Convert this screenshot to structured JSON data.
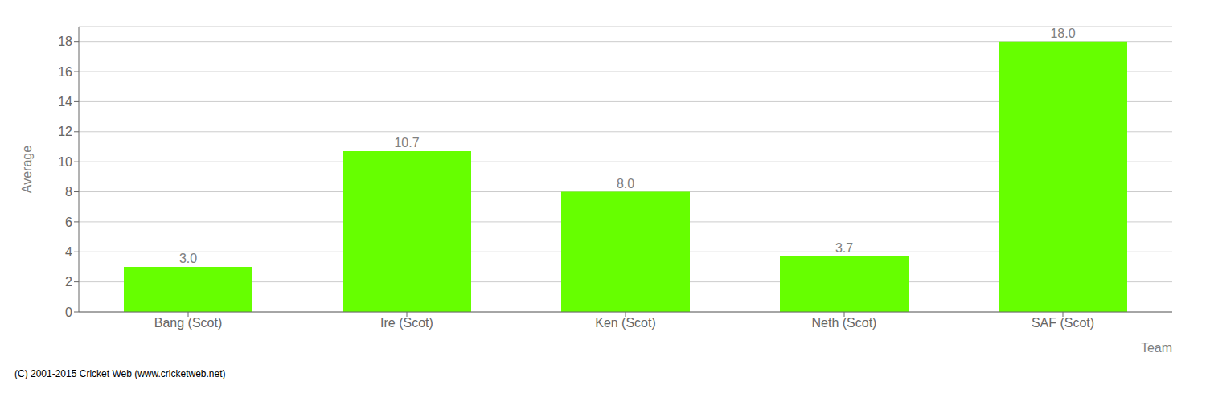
{
  "chart_data": {
    "type": "bar",
    "categories": [
      "Bang (Scot)",
      "Ire (Scot)",
      "Ken (Scot)",
      "Neth (Scot)",
      "SAF (Scot)"
    ],
    "values": [
      3.0,
      10.7,
      8.0,
      3.7,
      18.0
    ],
    "value_labels": [
      "3.0",
      "10.7",
      "8.0",
      "3.7",
      "18.0"
    ],
    "data_labels": true,
    "color": "#66ff00",
    "xlabel": "Team",
    "ylabel": "Average",
    "ylim": [
      0,
      19
    ],
    "yticks": [
      0,
      2,
      4,
      6,
      8,
      10,
      12,
      14,
      16,
      18
    ],
    "grid": true,
    "annotations": [
      "(C) 2001-2015 Cricket Web (www.cricketweb.net)"
    ]
  }
}
